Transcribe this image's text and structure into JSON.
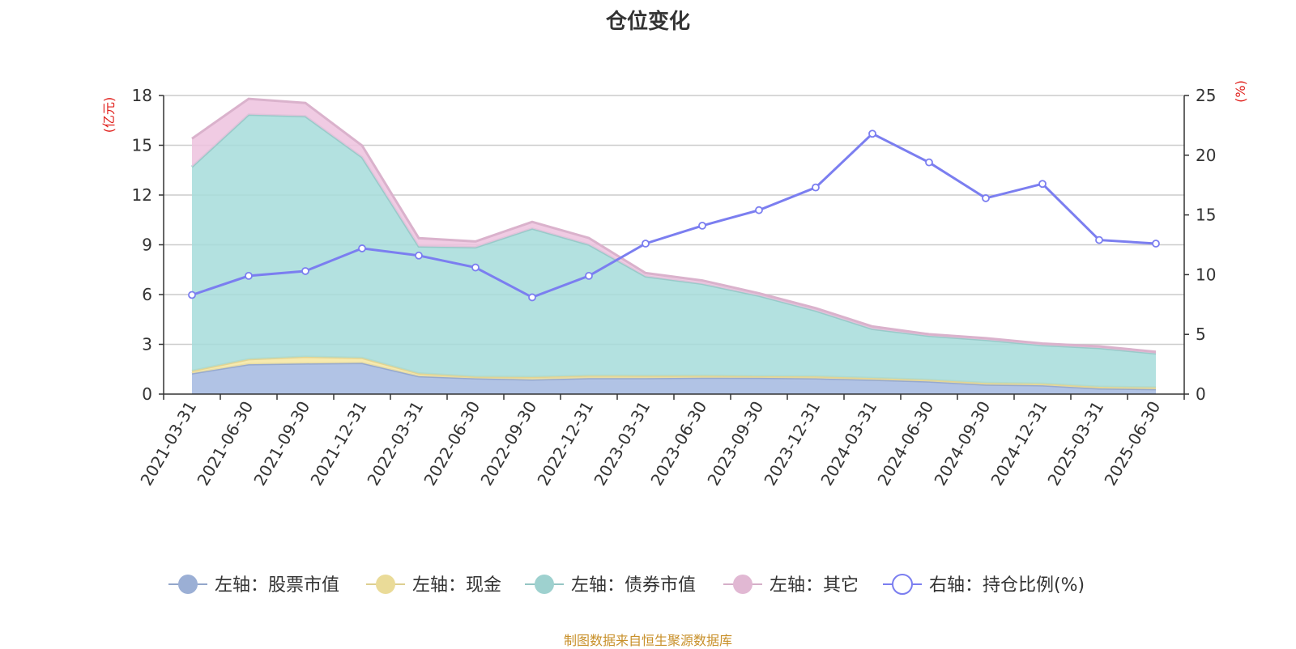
{
  "chart_data": {
    "type": "area",
    "title": "仓位变化",
    "x": [
      "2021-03-31",
      "2021-06-30",
      "2021-09-30",
      "2021-12-31",
      "2022-03-31",
      "2022-06-30",
      "2022-09-30",
      "2022-12-31",
      "2023-03-31",
      "2023-06-30",
      "2023-09-30",
      "2023-12-31",
      "2024-03-31",
      "2024-06-30",
      "2024-09-30",
      "2024-12-31",
      "2025-03-31",
      "2025-06-30"
    ],
    "left_axis": {
      "unit": "(亿元)",
      "ylim": [
        0,
        18
      ],
      "ticks": [
        "0",
        "3",
        "6",
        "9",
        "12",
        "15",
        "18"
      ]
    },
    "right_axis": {
      "unit": "(%)",
      "ylim": [
        0,
        25
      ],
      "ticks": [
        "0",
        "5",
        "10",
        "15",
        "20",
        "25"
      ]
    },
    "series": [
      {
        "name": "左轴：股票市值",
        "type": "area",
        "axis": "left",
        "stacked": true,
        "color": "#a3b8e0",
        "values": [
          1.25,
          1.8,
          1.85,
          1.88,
          1.08,
          0.95,
          0.88,
          0.96,
          0.96,
          0.99,
          0.98,
          0.95,
          0.87,
          0.76,
          0.57,
          0.53,
          0.34,
          0.3
        ]
      },
      {
        "name": "左轴：现金",
        "type": "area",
        "axis": "left",
        "stacked": true,
        "color": "#f6e6a0",
        "values": [
          0.15,
          0.3,
          0.4,
          0.3,
          0.17,
          0.1,
          0.15,
          0.15,
          0.14,
          0.12,
          0.1,
          0.12,
          0.1,
          0.1,
          0.1,
          0.1,
          0.1,
          0.1
        ]
      },
      {
        "name": "左轴：债券市值",
        "type": "area",
        "axis": "left",
        "stacked": true,
        "color": "#a6dcda",
        "values": [
          12.3,
          14.75,
          14.5,
          12.1,
          7.65,
          7.8,
          8.95,
          7.9,
          6.0,
          5.54,
          4.85,
          3.96,
          2.96,
          2.65,
          2.6,
          2.32,
          2.34,
          2.05
        ]
      },
      {
        "name": "左轴：其它",
        "type": "area",
        "axis": "left",
        "stacked": true,
        "color": "#edc2de",
        "values": [
          1.7,
          0.95,
          0.8,
          0.7,
          0.5,
          0.35,
          0.4,
          0.4,
          0.2,
          0.2,
          0.15,
          0.15,
          0.15,
          0.1,
          0.1,
          0.1,
          0.1,
          0.1
        ]
      },
      {
        "name": "右轴：持仓比例(%)",
        "type": "line",
        "axis": "right",
        "color": "#7b7ef0",
        "values": [
          8.3,
          9.9,
          10.3,
          12.2,
          11.6,
          10.6,
          8.1,
          9.9,
          12.6,
          14.1,
          15.4,
          17.3,
          21.8,
          19.4,
          16.4,
          17.6,
          12.9,
          12.6
        ]
      }
    ],
    "grid": true,
    "legend_position": "bottom-center"
  },
  "source_note": "制图数据来自恒生聚源数据库"
}
